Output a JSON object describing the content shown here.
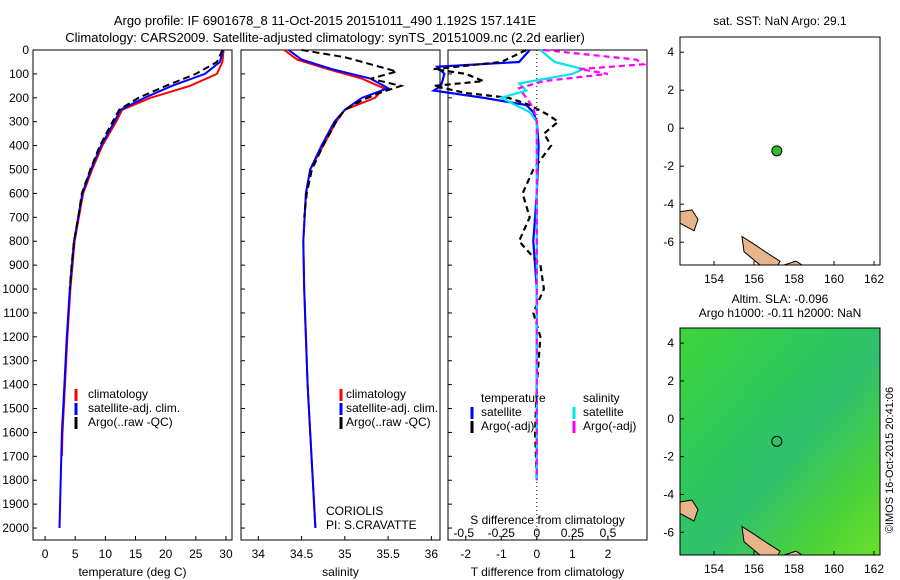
{
  "header": {
    "title_line1": "Argo profile: IF 6901678_8 11-Oct-2015 20151011_490 1.192S 157.141E",
    "title_line2": "Climatology: CARS2009. Satellite-adjusted climatology: synTS_20151009.nc (2.2d earlier)"
  },
  "colors": {
    "climatology": "#ff0000",
    "satellite": "#0000ff",
    "argo": "#000000",
    "salinity_satellite": "#00e5ee",
    "salinity_argo": "#ff00ff",
    "land": "#e8b48a",
    "sla_field": "#36d436"
  },
  "chart_data": [
    {
      "type": "line",
      "name": "temperature_profile",
      "xlabel": "temperature (deg C)",
      "ylabel": "",
      "xlim": [
        -2,
        31
      ],
      "ylim": [
        2050,
        0
      ],
      "xticks": [
        0,
        5,
        10,
        15,
        20,
        25,
        30
      ],
      "yticks": [
        0,
        100,
        200,
        300,
        400,
        500,
        600,
        700,
        800,
        900,
        1000,
        1100,
        1200,
        1300,
        1400,
        1500,
        1600,
        1700,
        1800,
        1900,
        2000
      ],
      "legend": [
        "climatology",
        "satellite-adj. clim.",
        "Argo(..raw -QC)"
      ],
      "series": [
        {
          "name": "climatology",
          "color": "#ff0000",
          "depth": [
            0,
            50,
            100,
            150,
            200,
            250,
            300,
            400,
            500,
            600,
            800,
            1000,
            1200,
            1400,
            1600,
            1700
          ],
          "values": [
            29.6,
            29.4,
            28.5,
            24.0,
            17.5,
            12.8,
            11.8,
            9.5,
            7.8,
            6.3,
            4.9,
            4.2,
            3.7,
            3.3,
            2.9,
            2.8
          ]
        },
        {
          "name": "satellite-adj. clim.",
          "color": "#0000ff",
          "depth": [
            0,
            50,
            100,
            150,
            200,
            250,
            300,
            400,
            500,
            600,
            800,
            1000,
            1200,
            1400,
            1600,
            1800,
            2000
          ],
          "values": [
            29.5,
            29.0,
            26.5,
            21.0,
            16.5,
            12.5,
            11.5,
            9.3,
            7.6,
            6.2,
            4.8,
            4.1,
            3.6,
            3.2,
            2.8,
            2.6,
            2.4
          ]
        },
        {
          "name": "Argo(..raw -QC)",
          "color": "#000000",
          "depth": [
            0,
            50,
            100,
            150,
            200,
            250,
            300,
            400,
            500,
            600,
            700,
            800,
            900,
            1000
          ],
          "values": [
            29.4,
            28.5,
            25.0,
            20.0,
            15.5,
            12.3,
            11.2,
            9.1,
            7.5,
            6.1,
            5.5,
            4.8,
            4.4,
            4.1
          ]
        }
      ]
    },
    {
      "type": "line",
      "name": "salinity_profile",
      "xlabel": "salinity",
      "xlim": [
        33.8,
        36.1
      ],
      "ylim": [
        2050,
        0
      ],
      "xticks": [
        34,
        34.5,
        35,
        35.5,
        36
      ],
      "legend": [
        "climatology",
        "satellite-adj. clim.",
        "Argo(..raw -QC)"
      ],
      "annotation": [
        "CORIOLIS",
        "PI: S.CRAVATTE"
      ],
      "series": [
        {
          "name": "climatology",
          "color": "#ff0000",
          "depth": [
            0,
            40,
            80,
            120,
            160,
            200,
            250,
            300,
            400,
            500,
            600,
            800,
            1000,
            1200,
            1400,
            1600,
            1800,
            2000
          ],
          "values": [
            34.3,
            34.45,
            34.8,
            35.2,
            35.45,
            35.35,
            35.0,
            34.9,
            34.75,
            34.6,
            34.55,
            34.52,
            34.53,
            34.55,
            34.57,
            34.6,
            34.63,
            34.66
          ]
        },
        {
          "name": "satellite-adj. clim.",
          "color": "#0000ff",
          "depth": [
            0,
            40,
            80,
            120,
            160,
            200,
            250,
            300,
            400,
            500,
            600,
            800,
            1000,
            1200,
            1400,
            1600,
            1800,
            2000
          ],
          "values": [
            34.35,
            34.5,
            34.85,
            35.3,
            35.5,
            35.2,
            35.0,
            34.88,
            34.73,
            34.6,
            34.55,
            34.52,
            34.53,
            34.55,
            34.57,
            34.6,
            34.63,
            34.66
          ]
        },
        {
          "name": "Argo(..raw -QC)",
          "color": "#000000",
          "depth": [
            0,
            30,
            60,
            90,
            120,
            150,
            180,
            210,
            250,
            300,
            400,
            500,
            600,
            700
          ],
          "values": [
            34.5,
            35.0,
            35.3,
            35.6,
            35.3,
            35.65,
            35.4,
            35.2,
            35.0,
            34.9,
            34.75,
            34.62,
            34.56,
            34.53
          ]
        }
      ]
    },
    {
      "type": "line",
      "name": "difference_profile",
      "xlabel": "T difference from climatology",
      "x2label": "S difference from climatology",
      "xlim": [
        -2.5,
        3.1
      ],
      "ylim": [
        2050,
        0
      ],
      "xticks": [
        -2,
        -1,
        0,
        1,
        2
      ],
      "x2ticks": [
        "-0.5",
        "-0.25",
        "0",
        "0.25",
        "0.5"
      ],
      "legend_title_t": "temperature",
      "legend_title_s": "salinity",
      "legend": [
        "satellite",
        "Argo(-adj)",
        "satellite",
        "Argo(-adj)"
      ],
      "series": [
        {
          "name": "T satellite",
          "color": "#0000ff",
          "style": "solid",
          "depth": [
            0,
            50,
            70,
            100,
            150,
            170,
            200,
            230,
            260,
            300,
            400,
            600,
            800,
            1000,
            1400,
            1800
          ],
          "values": [
            -0.2,
            -0.5,
            -2.8,
            -2.6,
            -2.7,
            -2.9,
            -1.5,
            -0.3,
            -0.1,
            0.0,
            0.05,
            0.0,
            -0.1,
            0.0,
            0.0,
            0.0
          ]
        },
        {
          "name": "T Argo(-adj)",
          "color": "#000000",
          "style": "dashed",
          "depth": [
            0,
            50,
            80,
            100,
            130,
            150,
            180,
            200,
            230,
            270,
            300,
            350,
            400,
            500,
            600,
            700,
            800,
            900,
            1000,
            1100,
            1200,
            1400,
            1600,
            1800
          ],
          "values": [
            -0.3,
            -1.0,
            -2.9,
            -2.0,
            -1.5,
            -2.9,
            -2.0,
            -0.8,
            -0.2,
            0.3,
            0.6,
            0.2,
            0.4,
            -0.1,
            -0.4,
            -0.2,
            -0.5,
            0.1,
            0.2,
            -0.1,
            0.1,
            0.0,
            -0.05,
            0.0
          ]
        },
        {
          "name": "S satellite",
          "color": "#00e5ee",
          "style": "solid",
          "depth": [
            0,
            50,
            80,
            100,
            140,
            170,
            200,
            230,
            260,
            300,
            400,
            600,
            800,
            1000,
            1400,
            1800
          ],
          "values": [
            0.1,
            0.5,
            1.3,
            1.0,
            -0.5,
            -0.3,
            -1.0,
            -0.6,
            -0.2,
            0.0,
            0.0,
            0.0,
            0.0,
            0.0,
            0.0,
            0.0
          ]
        },
        {
          "name": "S Argo(-adj)",
          "color": "#ff00ff",
          "style": "dashed",
          "depth": [
            0,
            40,
            60,
            80,
            100,
            130,
            160,
            200,
            240,
            300,
            400,
            600,
            800,
            1000,
            1400,
            1800
          ],
          "values": [
            0.2,
            2.8,
            3.0,
            1.2,
            2.0,
            0.2,
            -0.5,
            -0.3,
            -0.1,
            0.0,
            0.0,
            0.0,
            0.0,
            0.0,
            0.0,
            0.0
          ]
        }
      ]
    },
    {
      "type": "scatter",
      "name": "sst_map",
      "title": "sat. SST: NaN Argo: 29.1",
      "xlim": [
        152.3,
        162.3
      ],
      "ylim": [
        -7.2,
        4.8
      ],
      "xticks": [
        154,
        156,
        158,
        160,
        162
      ],
      "yticks": [
        -6,
        -4,
        -2,
        0,
        2,
        4
      ],
      "float_position": {
        "lon": 157.141,
        "lat": -1.192
      }
    },
    {
      "type": "heatmap",
      "name": "sla_map",
      "title_line1": "Altim. SLA: -0.096",
      "title_line2": "Argo h1000: -0.11 h2000: NaN",
      "xlim": [
        152.3,
        162.3
      ],
      "ylim": [
        -7.2,
        4.8
      ],
      "xticks": [
        154,
        156,
        158,
        160,
        162
      ],
      "yticks": [
        -6,
        -4,
        -2,
        0,
        2,
        4
      ],
      "float_position": {
        "lon": 157.141,
        "lat": -1.192
      },
      "credit": "©IMOS 16-Oct-2015 20:41:06"
    }
  ]
}
